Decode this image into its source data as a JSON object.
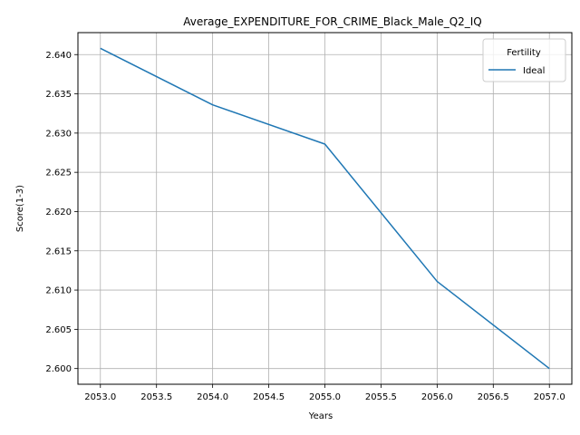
{
  "chart_data": {
    "type": "line",
    "title": "Average_EXPENDITURE_FOR_CRIME_Black_Male_Q2_IQ",
    "xlabel": "Years",
    "ylabel": "Score(1-3)",
    "x": [
      2053,
      2054,
      2055,
      2056,
      2057
    ],
    "series": [
      {
        "name": "Ideal",
        "values": [
          2.6408,
          2.6336,
          2.6286,
          2.6111,
          2.6
        ]
      }
    ],
    "xlim": [
      2052.8,
      2057.2
    ],
    "ylim": [
      2.598,
      2.6428
    ],
    "xticks": [
      2053.0,
      2053.5,
      2054.0,
      2054.5,
      2055.0,
      2055.5,
      2056.0,
      2056.5,
      2057.0
    ],
    "xtick_labels": [
      "2053.0",
      "2053.5",
      "2054.0",
      "2054.5",
      "2055.0",
      "2055.5",
      "2056.0",
      "2056.5",
      "2057.0"
    ],
    "yticks": [
      2.6,
      2.605,
      2.61,
      2.615,
      2.62,
      2.625,
      2.63,
      2.635,
      2.64
    ],
    "ytick_labels": [
      "2.600",
      "2.605",
      "2.610",
      "2.615",
      "2.620",
      "2.625",
      "2.630",
      "2.635",
      "2.640"
    ],
    "grid": true,
    "legend": {
      "title": "Fertility",
      "placement": "top-right"
    },
    "colors": {
      "series": "#1f77b4",
      "grid": "#b0b0b0",
      "axis": "#000000"
    }
  }
}
